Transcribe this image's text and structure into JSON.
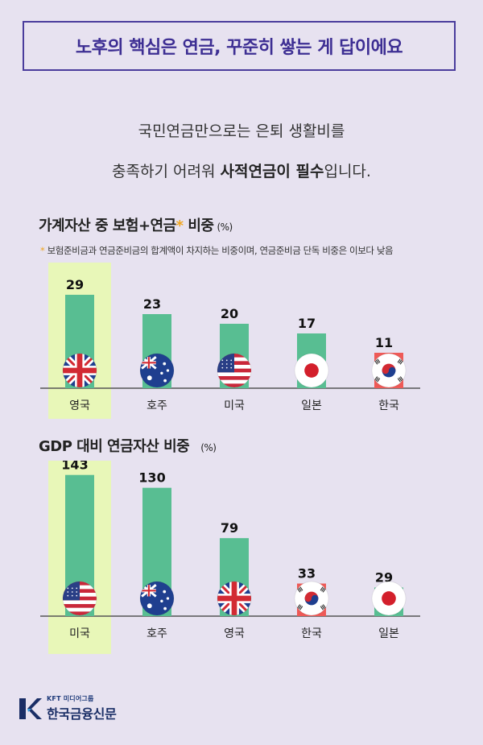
{
  "header": {
    "title": "노후의 핵심은 연금, 꾸준히 쌓는 게 답이에요"
  },
  "intro": {
    "line1": "국민연금만으로는 은퇴 생활비를",
    "line2_pre": "충족하기 어려워 ",
    "line2_bold": "사적연금이 필수",
    "line2_post": "입니다."
  },
  "chart_data": [
    {
      "type": "bar",
      "title": "가계자산 중 보험+연금",
      "title_mark": "*",
      "title_rest": " 비중",
      "unit": "(%)",
      "footnote_mark": "*",
      "footnote": "보험준비금과 연금준비금의 합계액이 차지하는 비중이며, 연금준비금 단독 비중은 이보다 낮음",
      "categories": [
        "영국",
        "호주",
        "미국",
        "일본",
        "한국"
      ],
      "values": [
        29,
        23,
        20,
        17,
        11
      ],
      "flags": [
        "uk-flag-icon",
        "australia-flag-icon",
        "usa-flag-icon",
        "japan-flag-icon",
        "korea-flag-icon"
      ],
      "highlight_index": 0,
      "ylim": [
        0,
        33
      ]
    },
    {
      "type": "bar",
      "title": "GDP 대비 연금자산 비중",
      "unit": "(%)",
      "categories": [
        "미국",
        "호주",
        "영국",
        "한국",
        "일본"
      ],
      "values": [
        143,
        130,
        79,
        33,
        29
      ],
      "flags": [
        "usa-flag-icon",
        "australia-flag-icon",
        "uk-flag-icon",
        "korea-flag-icon",
        "japan-flag-icon"
      ],
      "highlight_index": 0,
      "ylim": [
        0,
        155
      ]
    }
  ],
  "colors": {
    "bar": "#58be92",
    "bar_korea": "#ee5a57",
    "highlight": "#e8f7b8",
    "baseline": "#555555"
  },
  "logo": {
    "sub": "KFT 미디어그룹",
    "main": "한국금융신문"
  }
}
